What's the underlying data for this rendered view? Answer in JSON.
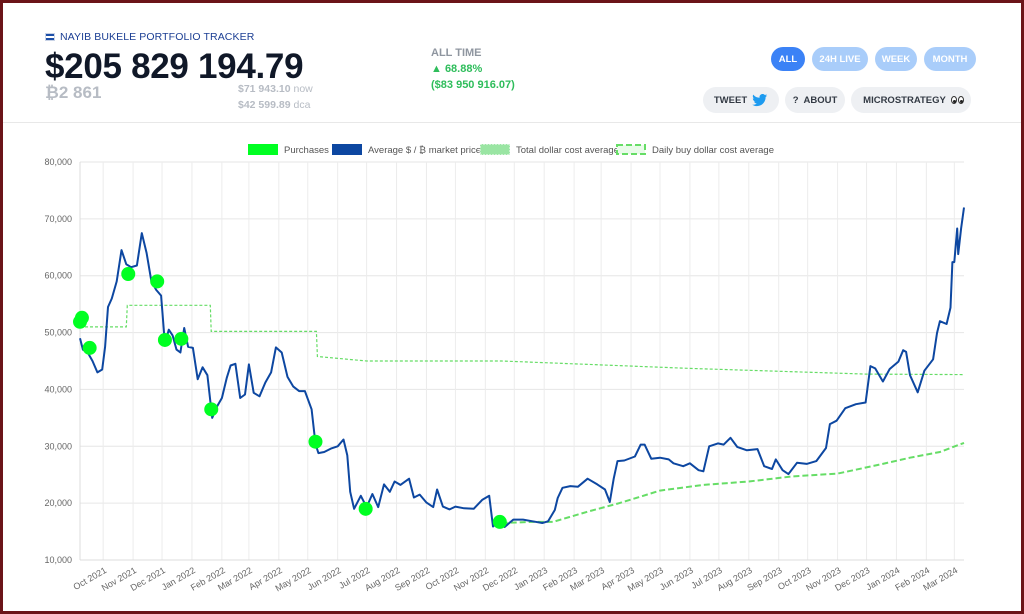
{
  "header": {
    "brand": "NAYIB BUKELE PORTFOLIO TRACKER",
    "value": "$205 829 194.79",
    "btc_amount": "₿2 861",
    "price_now": "$71 943.10",
    "price_now_suffix": "now",
    "price_dca": "$42 599.89",
    "price_dca_suffix": "dca",
    "alltime_label": "ALL TIME",
    "alltime_pct": "▲ 68.88%",
    "alltime_gain": "($83 950 916.07)"
  },
  "ranges": [
    {
      "label": "ALL",
      "active": true
    },
    {
      "label": "24H LIVE",
      "active": false
    },
    {
      "label": "WEEK",
      "active": false
    },
    {
      "label": "MONTH",
      "active": false
    }
  ],
  "links": [
    {
      "label": "TWEET",
      "icon": "twitter-bird-icon"
    },
    {
      "label": "ABOUT",
      "icon": "question-icon"
    },
    {
      "label": "MICROSTRATEGY",
      "icon": "lightning-icon"
    }
  ],
  "colors": {
    "purchases": "#00ff22",
    "market_price": "#0d47a1",
    "dca_total": "#90e39a",
    "dca_daily": "#66dd66",
    "accent": "#3b82f6"
  },
  "chart_data": {
    "type": "line",
    "x_tick_labels": [
      "Oct 2021",
      "Nov 2021",
      "Dec 2021",
      "Jan 2022",
      "Feb 2022",
      "Mar 2022",
      "Apr 2022",
      "May 2022",
      "Jun 2022",
      "Jul 2022",
      "Aug 2022",
      "Sep 2022",
      "Oct 2022",
      "Nov 2022",
      "Dec 2022",
      "Jan 2023",
      "Feb 2023",
      "Mar 2023",
      "Apr 2023",
      "May 2023",
      "Jun 2023",
      "Jul 2023",
      "Aug 2023",
      "Sep 2023",
      "Oct 2023",
      "Nov 2023",
      "Dec 2023",
      "Jan 2024",
      "Feb 2024",
      "Mar 2024"
    ],
    "y_ticks": [
      "10,000",
      "20,000",
      "30,000",
      "40,000",
      "50,000",
      "60,000",
      "70,000",
      "80,000"
    ],
    "ylim": [
      10000,
      80000
    ],
    "xlim": [
      "2021-09-07",
      "2024-03-11"
    ],
    "legend_position": "top",
    "grid": true,
    "legend": [
      {
        "key": "purchases",
        "label": "Purchases",
        "style": "solid"
      },
      {
        "key": "market_price",
        "label": "Average $ / ₿ market price",
        "style": "solid"
      },
      {
        "key": "dca_total",
        "label": "Total dollar cost average",
        "style": "dotted"
      },
      {
        "key": "dca_daily",
        "label": "Daily buy dollar cost average",
        "style": "dashed"
      }
    ],
    "series": [
      {
        "name": "Average $ / ₿ market price",
        "points": [
          [
            "2021-09-07",
            49000
          ],
          [
            "2021-09-10",
            47000
          ],
          [
            "2021-09-15",
            46500
          ],
          [
            "2021-09-20",
            45000
          ],
          [
            "2021-09-25",
            43000
          ],
          [
            "2021-09-30",
            43500
          ],
          [
            "2021-10-03",
            47500
          ],
          [
            "2021-10-06",
            54500
          ],
          [
            "2021-10-10",
            56000
          ],
          [
            "2021-10-15",
            59000
          ],
          [
            "2021-10-20",
            64500
          ],
          [
            "2021-10-25",
            62000
          ],
          [
            "2021-10-30",
            61500
          ],
          [
            "2021-11-05",
            61800
          ],
          [
            "2021-11-10",
            67500
          ],
          [
            "2021-11-15",
            64000
          ],
          [
            "2021-11-20",
            59000
          ],
          [
            "2021-11-25",
            57500
          ],
          [
            "2021-11-30",
            56500
          ],
          [
            "2021-12-04",
            48000
          ],
          [
            "2021-12-08",
            50500
          ],
          [
            "2021-12-12",
            49500
          ],
          [
            "2021-12-16",
            47000
          ],
          [
            "2021-12-20",
            46500
          ],
          [
            "2021-12-24",
            50800
          ],
          [
            "2021-12-28",
            47500
          ],
          [
            "2022-01-02",
            47300
          ],
          [
            "2022-01-07",
            41800
          ],
          [
            "2022-01-12",
            43900
          ],
          [
            "2022-01-17",
            42500
          ],
          [
            "2022-01-22",
            35000
          ],
          [
            "2022-01-27",
            37000
          ],
          [
            "2022-02-01",
            38500
          ],
          [
            "2022-02-06",
            42000
          ],
          [
            "2022-02-10",
            44200
          ],
          [
            "2022-02-15",
            44500
          ],
          [
            "2022-02-20",
            38500
          ],
          [
            "2022-02-25",
            39100
          ],
          [
            "2022-03-01",
            44400
          ],
          [
            "2022-03-06",
            39400
          ],
          [
            "2022-03-12",
            38800
          ],
          [
            "2022-03-18",
            41200
          ],
          [
            "2022-03-24",
            43000
          ],
          [
            "2022-03-29",
            47400
          ],
          [
            "2022-04-04",
            46500
          ],
          [
            "2022-04-10",
            42200
          ],
          [
            "2022-04-16",
            40500
          ],
          [
            "2022-04-22",
            39700
          ],
          [
            "2022-04-28",
            39700
          ],
          [
            "2022-05-05",
            36500
          ],
          [
            "2022-05-09",
            30400
          ],
          [
            "2022-05-12",
            28800
          ],
          [
            "2022-05-18",
            29000
          ],
          [
            "2022-05-25",
            29600
          ],
          [
            "2022-06-01",
            30000
          ],
          [
            "2022-06-07",
            31200
          ],
          [
            "2022-06-11",
            28400
          ],
          [
            "2022-06-14",
            22000
          ],
          [
            "2022-06-18",
            19000
          ],
          [
            "2022-06-25",
            21300
          ],
          [
            "2022-07-01",
            19300
          ],
          [
            "2022-07-07",
            21600
          ],
          [
            "2022-07-13",
            19300
          ],
          [
            "2022-07-19",
            23300
          ],
          [
            "2022-07-25",
            22000
          ],
          [
            "2022-07-30",
            23800
          ],
          [
            "2022-08-05",
            23200
          ],
          [
            "2022-08-14",
            24300
          ],
          [
            "2022-08-19",
            21000
          ],
          [
            "2022-08-25",
            21500
          ],
          [
            "2022-09-01",
            20100
          ],
          [
            "2022-09-08",
            19300
          ],
          [
            "2022-09-12",
            22400
          ],
          [
            "2022-09-18",
            19400
          ],
          [
            "2022-09-25",
            18900
          ],
          [
            "2022-10-01",
            19400
          ],
          [
            "2022-10-10",
            19100
          ],
          [
            "2022-10-20",
            19000
          ],
          [
            "2022-10-29",
            20600
          ],
          [
            "2022-11-05",
            21300
          ],
          [
            "2022-11-09",
            15900
          ],
          [
            "2022-11-15",
            16900
          ],
          [
            "2022-11-21",
            15800
          ],
          [
            "2022-11-30",
            17100
          ],
          [
            "2022-12-10",
            17100
          ],
          [
            "2022-12-20",
            16800
          ],
          [
            "2022-12-30",
            16500
          ],
          [
            "2023-01-05",
            16800
          ],
          [
            "2023-01-12",
            18800
          ],
          [
            "2023-01-15",
            20900
          ],
          [
            "2023-01-20",
            22700
          ],
          [
            "2023-01-28",
            23000
          ],
          [
            "2023-02-05",
            22900
          ],
          [
            "2023-02-15",
            24300
          ],
          [
            "2023-02-25",
            23300
          ],
          [
            "2023-03-05",
            22400
          ],
          [
            "2023-03-10",
            20200
          ],
          [
            "2023-03-14",
            24300
          ],
          [
            "2023-03-18",
            27400
          ],
          [
            "2023-03-25",
            27500
          ],
          [
            "2023-04-05",
            28200
          ],
          [
            "2023-04-11",
            30300
          ],
          [
            "2023-04-15",
            30300
          ],
          [
            "2023-04-22",
            27800
          ],
          [
            "2023-05-01",
            28000
          ],
          [
            "2023-05-10",
            27700
          ],
          [
            "2023-05-15",
            27000
          ],
          [
            "2023-05-25",
            26500
          ],
          [
            "2023-06-01",
            27000
          ],
          [
            "2023-06-10",
            25800
          ],
          [
            "2023-06-15",
            25600
          ],
          [
            "2023-06-21",
            30000
          ],
          [
            "2023-06-30",
            30500
          ],
          [
            "2023-07-06",
            30300
          ],
          [
            "2023-07-13",
            31500
          ],
          [
            "2023-07-20",
            29900
          ],
          [
            "2023-07-30",
            29300
          ],
          [
            "2023-08-10",
            29500
          ],
          [
            "2023-08-17",
            26500
          ],
          [
            "2023-08-25",
            26000
          ],
          [
            "2023-08-29",
            27700
          ],
          [
            "2023-09-05",
            25800
          ],
          [
            "2023-09-11",
            25100
          ],
          [
            "2023-09-20",
            27100
          ],
          [
            "2023-09-30",
            26900
          ],
          [
            "2023-10-10",
            27400
          ],
          [
            "2023-10-20",
            29700
          ],
          [
            "2023-10-24",
            33900
          ],
          [
            "2023-10-31",
            34500
          ],
          [
            "2023-11-09",
            36700
          ],
          [
            "2023-11-20",
            37400
          ],
          [
            "2023-11-30",
            37700
          ],
          [
            "2023-12-05",
            44100
          ],
          [
            "2023-12-10",
            43700
          ],
          [
            "2023-12-18",
            41400
          ],
          [
            "2023-12-25",
            43600
          ],
          [
            "2024-01-03",
            44900
          ],
          [
            "2024-01-08",
            46900
          ],
          [
            "2024-01-11",
            46600
          ],
          [
            "2024-01-15",
            42500
          ],
          [
            "2024-01-23",
            39500
          ],
          [
            "2024-01-30",
            43300
          ],
          [
            "2024-02-08",
            45300
          ],
          [
            "2024-02-12",
            49900
          ],
          [
            "2024-02-15",
            52000
          ],
          [
            "2024-02-22",
            51500
          ],
          [
            "2024-02-26",
            54400
          ],
          [
            "2024-02-28",
            62400
          ],
          [
            "2024-03-01",
            62400
          ],
          [
            "2024-03-04",
            68300
          ],
          [
            "2024-03-05",
            63800
          ],
          [
            "2024-03-08",
            68300
          ],
          [
            "2024-03-11",
            72000
          ]
        ]
      },
      {
        "name": "Total dollar cost average",
        "points": [
          [
            "2021-09-07",
            51000
          ],
          [
            "2021-10-25",
            51000
          ],
          [
            "2021-10-26",
            54800
          ],
          [
            "2022-01-20",
            54800
          ],
          [
            "2022-01-21",
            50200
          ],
          [
            "2022-05-10",
            50200
          ],
          [
            "2022-05-11",
            45800
          ],
          [
            "2022-07-01",
            45000
          ],
          [
            "2022-11-18",
            45000
          ],
          [
            "2023-06-01",
            43700
          ],
          [
            "2023-12-01",
            42700
          ],
          [
            "2024-03-11",
            42600
          ]
        ]
      },
      {
        "name": "Daily buy dollar cost average",
        "points": [
          [
            "2022-11-18",
            16500
          ],
          [
            "2022-12-20",
            16700
          ],
          [
            "2023-01-10",
            16700
          ],
          [
            "2023-02-15",
            18500
          ],
          [
            "2023-03-20",
            20000
          ],
          [
            "2023-05-01",
            22200
          ],
          [
            "2023-06-15",
            23200
          ],
          [
            "2023-08-01",
            23800
          ],
          [
            "2023-09-15",
            24700
          ],
          [
            "2023-11-01",
            25200
          ],
          [
            "2023-12-15",
            26800
          ],
          [
            "2024-01-15",
            28000
          ],
          [
            "2024-02-15",
            29000
          ],
          [
            "2024-03-11",
            30600
          ]
        ]
      }
    ],
    "purchases": [
      [
        "2021-09-07",
        51900
      ],
      [
        "2021-09-09",
        52600
      ],
      [
        "2021-09-17",
        47300
      ],
      [
        "2021-10-27",
        60300
      ],
      [
        "2021-11-26",
        59000
      ],
      [
        "2021-12-04",
        48700
      ],
      [
        "2021-12-21",
        48900
      ],
      [
        "2022-01-21",
        36500
      ],
      [
        "2022-05-09",
        30800
      ],
      [
        "2022-06-30",
        19000
      ],
      [
        "2022-11-16",
        16700
      ]
    ]
  }
}
